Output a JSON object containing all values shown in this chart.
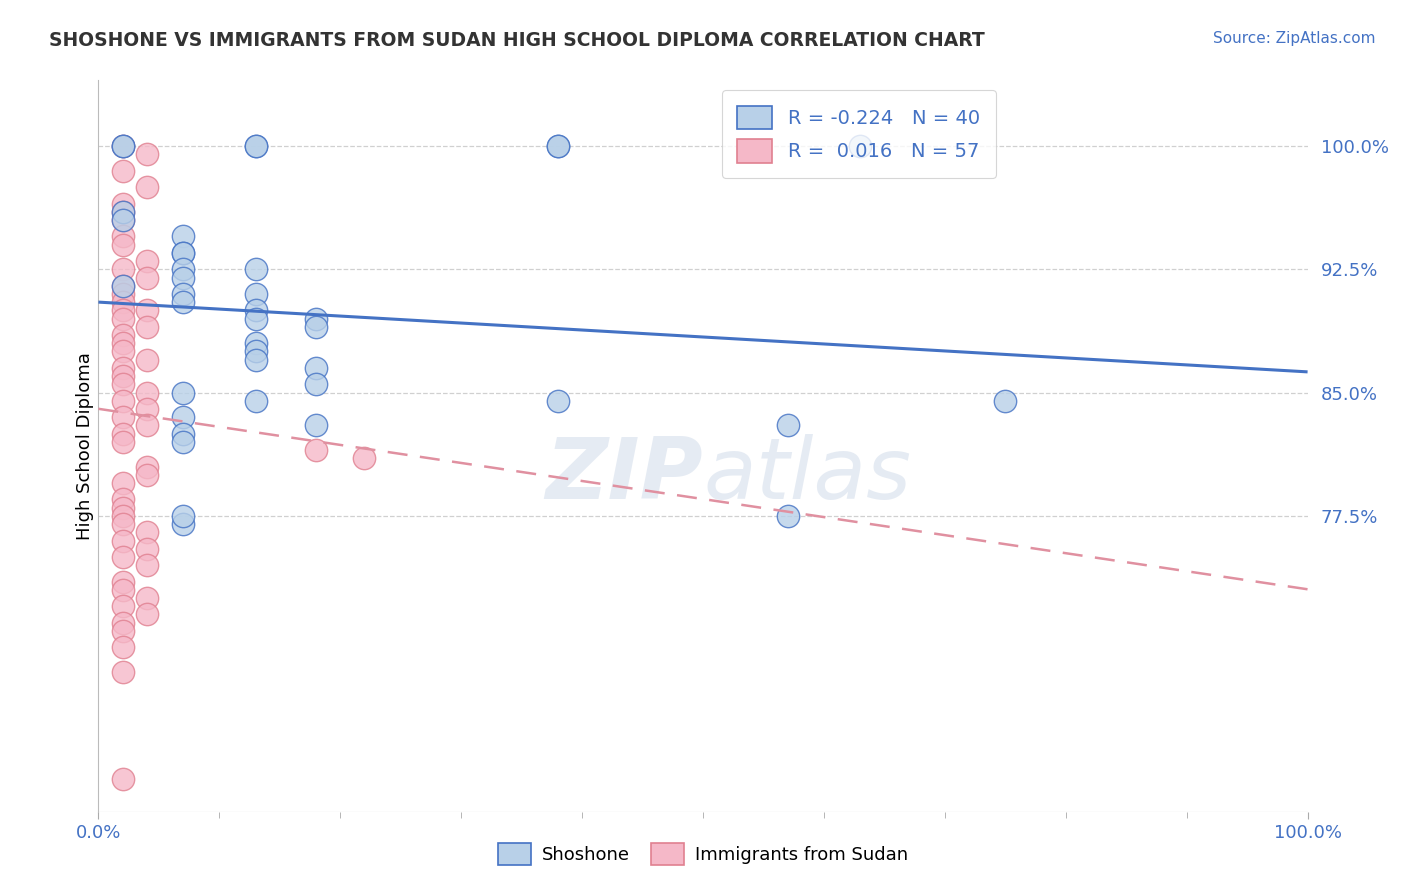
{
  "title": "SHOSHONE VS IMMIGRANTS FROM SUDAN HIGH SCHOOL DIPLOMA CORRELATION CHART",
  "source": "Source: ZipAtlas.com",
  "ylabel": "High School Diploma",
  "legend_label_blue": "Shoshone",
  "legend_label_pink": "Immigrants from Sudan",
  "R_blue": -0.224,
  "N_blue": 40,
  "R_pink": 0.016,
  "N_pink": 57,
  "blue_fill": "#b8d0e8",
  "blue_edge": "#4472c4",
  "pink_fill": "#f5b8c8",
  "pink_edge": "#e08090",
  "blue_line_color": "#4472c4",
  "pink_line_color": "#e090a0",
  "text_color": "#4472c4",
  "grid_color": "#d0d0d0",
  "ytick_values": [
    0.775,
    0.85,
    0.925,
    1.0
  ],
  "ytick_labels": [
    "77.5%",
    "85.0%",
    "92.5%",
    "100.0%"
  ],
  "xlim": [
    0.0,
    1.0
  ],
  "ylim": [
    0.595,
    1.04
  ],
  "blue_x": [
    0.02,
    0.02,
    0.13,
    0.13,
    0.38,
    0.38,
    0.63,
    0.02,
    0.02,
    0.07,
    0.07,
    0.07,
    0.07,
    0.13,
    0.07,
    0.02,
    0.07,
    0.13,
    0.07,
    0.13,
    0.13,
    0.18,
    0.18,
    0.13,
    0.13,
    0.13,
    0.18,
    0.18,
    0.07,
    0.13,
    0.38,
    0.07,
    0.18,
    0.07,
    0.75,
    0.07,
    0.57,
    0.07,
    0.57,
    0.07
  ],
  "blue_y": [
    1.0,
    1.0,
    1.0,
    1.0,
    1.0,
    1.0,
    1.0,
    0.96,
    0.955,
    0.945,
    0.935,
    0.935,
    0.925,
    0.925,
    0.92,
    0.915,
    0.91,
    0.91,
    0.905,
    0.9,
    0.895,
    0.895,
    0.89,
    0.88,
    0.875,
    0.87,
    0.865,
    0.855,
    0.85,
    0.845,
    0.845,
    0.835,
    0.83,
    0.825,
    0.845,
    0.82,
    0.83,
    0.77,
    0.775,
    0.775
  ],
  "pink_x": [
    0.02,
    0.04,
    0.02,
    0.04,
    0.02,
    0.02,
    0.02,
    0.02,
    0.02,
    0.04,
    0.02,
    0.04,
    0.02,
    0.02,
    0.02,
    0.02,
    0.04,
    0.02,
    0.04,
    0.02,
    0.02,
    0.02,
    0.04,
    0.02,
    0.02,
    0.02,
    0.04,
    0.02,
    0.04,
    0.02,
    0.04,
    0.02,
    0.02,
    0.18,
    0.22,
    0.04,
    0.04,
    0.02,
    0.02,
    0.02,
    0.02,
    0.02,
    0.04,
    0.02,
    0.04,
    0.02,
    0.04,
    0.02,
    0.02,
    0.04,
    0.02,
    0.04,
    0.02,
    0.02,
    0.02,
    0.02,
    0.02
  ],
  "pink_y": [
    1.0,
    0.995,
    0.985,
    0.975,
    0.965,
    0.96,
    0.955,
    0.945,
    0.94,
    0.93,
    0.925,
    0.92,
    0.915,
    0.91,
    0.905,
    0.9,
    0.9,
    0.895,
    0.89,
    0.885,
    0.88,
    0.875,
    0.87,
    0.865,
    0.86,
    0.855,
    0.85,
    0.845,
    0.84,
    0.835,
    0.83,
    0.825,
    0.82,
    0.815,
    0.81,
    0.805,
    0.8,
    0.795,
    0.785,
    0.78,
    0.775,
    0.77,
    0.765,
    0.76,
    0.755,
    0.75,
    0.745,
    0.735,
    0.73,
    0.725,
    0.72,
    0.715,
    0.71,
    0.705,
    0.695,
    0.68,
    0.615
  ]
}
